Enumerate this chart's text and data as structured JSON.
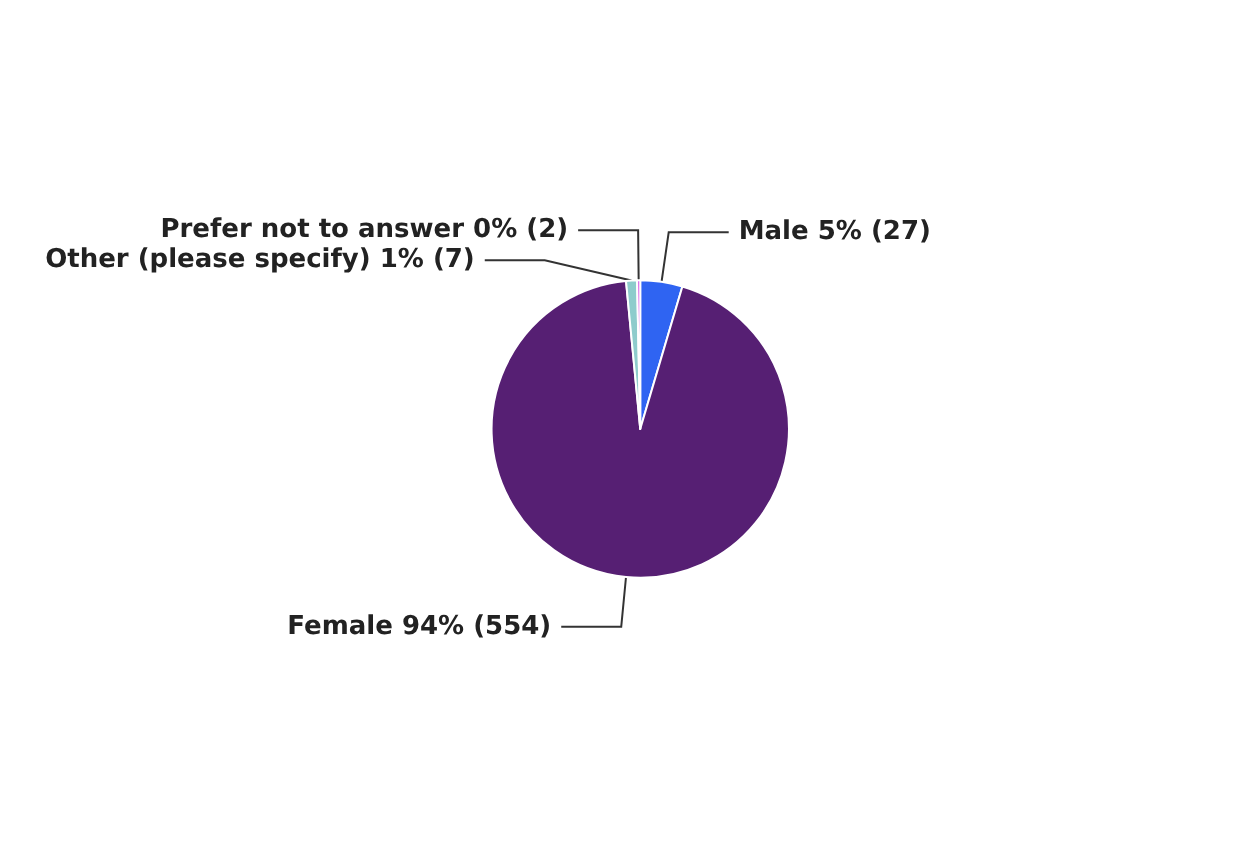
{
  "chart_data": {
    "type": "pie",
    "categories": [
      "Male",
      "Female",
      "Other (please specify)",
      "Prefer not to answer"
    ],
    "values": [
      27,
      554,
      7,
      2
    ],
    "colors": [
      "#2f64f2",
      "#561f73",
      "#8ecccc",
      "#d95ce6"
    ],
    "value_labels": [
      "5% (27)",
      "94% (554)",
      "1% (7)",
      "0% (2)"
    ],
    "legend": false
  }
}
